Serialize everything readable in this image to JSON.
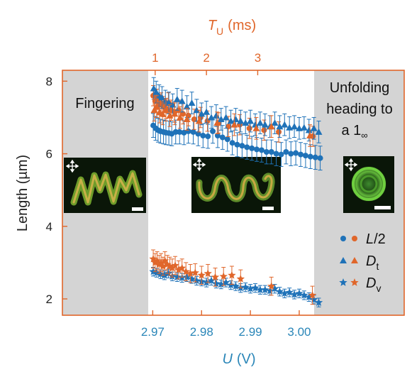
{
  "chart_data": {
    "type": "scatter",
    "xlabel": "U (V)",
    "xlabel_var": "U",
    "xlabel_unit": "(V)",
    "x_ticks": [
      "2.97",
      "2.98",
      "2.99",
      "3.00"
    ],
    "x_tick_values": [
      2.97,
      2.98,
      2.99,
      3.0
    ],
    "xlim": [
      2.9515,
      3.0215
    ],
    "top_xlabel_var": "T",
    "top_xlabel_sub": "U",
    "top_xlabel_unit": "(ms)",
    "top_ticks": [
      "1",
      "2",
      "3"
    ],
    "top_tick_values": [
      1,
      2,
      3
    ],
    "ylabel": "Length (µm)",
    "y_ticks": [
      "8",
      "6",
      "4",
      "2"
    ],
    "y_tick_values": [
      8,
      6,
      4,
      2
    ],
    "ylim": [
      1.55,
      8.3
    ],
    "regions": [
      {
        "label": "Fingering",
        "x_range": [
          2.9515,
          2.97
        ],
        "shaded": true
      },
      {
        "label": "",
        "x_range": [
          2.97,
          3.0055
        ],
        "shaded": false
      },
      {
        "label_lines": [
          "Unfolding",
          "heading to",
          "a 1"
        ],
        "label_sub": "∞",
        "x_range": [
          3.0055,
          3.0215
        ],
        "shaded": true
      }
    ],
    "legend": {
      "position": "bottom-right",
      "entries": [
        {
          "marker": "circle",
          "var": "L",
          "suffix": "/2",
          "sub": ""
        },
        {
          "marker": "triangle",
          "var": "D",
          "suffix": "",
          "sub": "t"
        },
        {
          "marker": "star",
          "var": "D",
          "suffix": "",
          "sub": "v"
        }
      ]
    },
    "colors": {
      "blue": "#1f72b8",
      "orange": "#e0662a",
      "shade": "#d4d4d4",
      "frame": "#e0662a"
    },
    "series": [
      {
        "marker": "circle",
        "color": "blue",
        "x": [
          2.9701,
          2.9706,
          2.9711,
          2.9716,
          2.9722,
          2.9727,
          2.9733,
          2.9739,
          2.9747,
          2.9755,
          2.9764,
          2.9773,
          2.9783,
          2.9793,
          2.9803,
          2.9813,
          2.9823,
          2.9833,
          2.9843,
          2.9853,
          2.9863,
          2.9873,
          2.9883,
          2.9893,
          2.9903,
          2.9913,
          2.9923,
          2.9933,
          2.9943,
          2.9953,
          2.9963,
          2.9973,
          2.9983,
          2.9993,
          3.0003,
          3.0013,
          3.0023,
          3.0033,
          3.0043
        ],
        "y": [
          6.78,
          6.7,
          6.65,
          6.62,
          6.6,
          6.58,
          6.57,
          6.55,
          6.6,
          6.6,
          6.58,
          6.62,
          6.6,
          6.55,
          6.5,
          6.48,
          6.62,
          6.5,
          6.45,
          6.4,
          6.3,
          6.25,
          6.22,
          6.18,
          6.15,
          6.12,
          6.1,
          6.05,
          6.05,
          6.0,
          5.98,
          6.05,
          6.0,
          6.02,
          5.98,
          5.95,
          5.92,
          5.9,
          5.88
        ],
        "err": 0.33
      },
      {
        "marker": "circle",
        "color": "orange",
        "x": [
          2.9701,
          2.9705,
          2.9709,
          2.9713,
          2.9717,
          2.9722,
          2.9727,
          2.9732,
          2.9738,
          2.9745,
          2.9753,
          2.9762,
          2.9773,
          2.9785,
          2.9798,
          2.9812,
          2.9835,
          2.9855,
          2.9878,
          2.9898,
          2.9928,
          2.9958,
          3.0028
        ],
        "y": [
          7.6,
          7.45,
          7.5,
          7.35,
          7.4,
          7.3,
          7.25,
          7.4,
          7.2,
          7.15,
          7.2,
          7.1,
          7.05,
          6.95,
          7.0,
          6.9,
          6.85,
          6.75,
          6.8,
          6.7,
          6.65,
          6.6,
          6.48
        ],
        "err": 0.28
      },
      {
        "marker": "triangle",
        "color": "blue",
        "x": [
          2.9702,
          2.9707,
          2.9713,
          2.9719,
          2.9726,
          2.9733,
          2.9741,
          2.975,
          2.976,
          2.977,
          2.978,
          2.979,
          2.98,
          2.981,
          2.982,
          2.983,
          2.984,
          2.985,
          2.986,
          2.987,
          2.988,
          2.989,
          2.99,
          2.991,
          2.992,
          2.993,
          2.994,
          2.995,
          2.996,
          2.997,
          2.998,
          2.999,
          3.0,
          3.001,
          3.002,
          3.003,
          3.004
        ],
        "y": [
          7.8,
          7.7,
          7.6,
          7.55,
          7.45,
          7.4,
          7.35,
          7.5,
          7.45,
          7.3,
          7.4,
          7.2,
          7.1,
          7.15,
          7.0,
          7.05,
          6.95,
          7.0,
          6.9,
          6.95,
          6.9,
          6.85,
          6.9,
          6.8,
          6.85,
          6.8,
          6.75,
          6.85,
          6.75,
          6.8,
          6.72,
          6.75,
          6.7,
          6.72,
          6.65,
          6.7,
          6.6
        ],
        "err": 0.3
      },
      {
        "marker": "triangle",
        "color": "orange",
        "x": [
          2.9703,
          2.9708,
          2.9714,
          2.972,
          2.9727,
          2.9735,
          2.9745,
          2.9756,
          2.977,
          2.9795,
          2.9832,
          2.9867,
          2.9912,
          2.9943,
          3.0022
        ],
        "y": [
          7.2,
          7.3,
          7.15,
          7.1,
          7.2,
          7.05,
          7.1,
          7.0,
          6.95,
          6.9,
          6.85,
          6.8,
          6.7,
          6.75,
          6.5
        ],
        "err": 0.3
      },
      {
        "marker": "star",
        "color": "blue",
        "x": [
          2.9701,
          2.9708,
          2.9716,
          2.9724,
          2.9732,
          2.974,
          2.975,
          2.976,
          2.977,
          2.978,
          2.979,
          2.98,
          2.981,
          2.982,
          2.983,
          2.984,
          2.985,
          2.986,
          2.987,
          2.988,
          2.989,
          2.99,
          2.991,
          2.992,
          2.993,
          2.994,
          2.995,
          2.996,
          2.997,
          2.998,
          2.999,
          3.0,
          3.001,
          3.002,
          3.003,
          3.004
        ],
        "y": [
          2.75,
          2.72,
          2.68,
          2.65,
          2.7,
          2.62,
          2.6,
          2.58,
          2.6,
          2.55,
          2.5,
          2.48,
          2.45,
          2.5,
          2.42,
          2.4,
          2.45,
          2.38,
          2.35,
          2.3,
          2.32,
          2.28,
          2.3,
          2.25,
          2.25,
          2.22,
          2.28,
          2.2,
          2.15,
          2.18,
          2.12,
          2.15,
          2.1,
          2.05,
          1.98,
          1.9
        ],
        "err": 0.12
      },
      {
        "marker": "star",
        "color": "orange",
        "x": [
          2.9701,
          2.9705,
          2.9709,
          2.9713,
          2.9717,
          2.9721,
          2.9725,
          2.973,
          2.9735,
          2.974,
          2.9746,
          2.9753,
          2.976,
          2.9768,
          2.9777,
          2.9787,
          2.98,
          2.9813,
          2.9828,
          2.9845,
          2.9862,
          2.988,
          2.9943,
          3.0027
        ],
        "y": [
          3.1,
          3.0,
          3.05,
          2.95,
          3.0,
          2.9,
          3.05,
          2.95,
          2.9,
          2.85,
          2.92,
          2.8,
          2.85,
          2.75,
          2.7,
          2.72,
          2.65,
          2.7,
          2.6,
          2.62,
          2.65,
          2.55,
          2.35,
          2.1
        ],
        "err": 0.25
      }
    ]
  }
}
